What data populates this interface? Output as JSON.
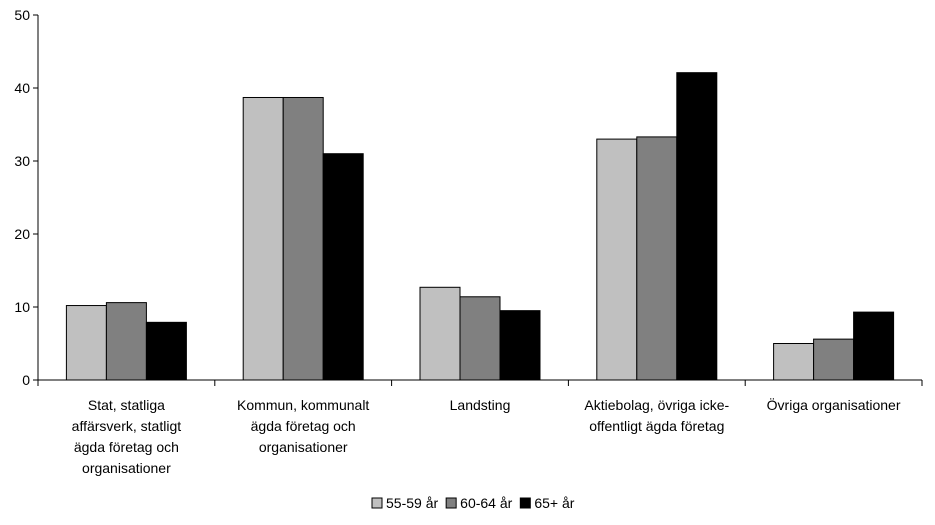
{
  "chart_data": {
    "type": "bar",
    "categories": [
      [
        "Stat, statliga",
        "affärsverk, statligt",
        "ägda företag och",
        "organisationer"
      ],
      [
        "Kommun, kommunalt",
        "ägda företag och",
        "organisationer"
      ],
      [
        "Landsting"
      ],
      [
        "Aktiebolag, övriga icke-",
        "offentligt ägda företag"
      ],
      [
        "Övriga organisationer"
      ]
    ],
    "series": [
      {
        "name": "55-59 år",
        "color": "#c0c0c0",
        "values": [
          10.2,
          38.7,
          12.7,
          33.0,
          5.0
        ]
      },
      {
        "name": "60-64 år",
        "color": "#808080",
        "values": [
          10.6,
          38.7,
          11.4,
          33.3,
          5.6
        ]
      },
      {
        "name": "65+ år",
        "color": "#000000",
        "values": [
          7.9,
          31.0,
          9.5,
          42.1,
          9.3
        ]
      }
    ],
    "ylim": [
      0,
      50
    ],
    "yticks": [
      "0",
      "10",
      "20",
      "30",
      "40",
      "50"
    ],
    "grid": false,
    "legend_position": "bottom"
  }
}
